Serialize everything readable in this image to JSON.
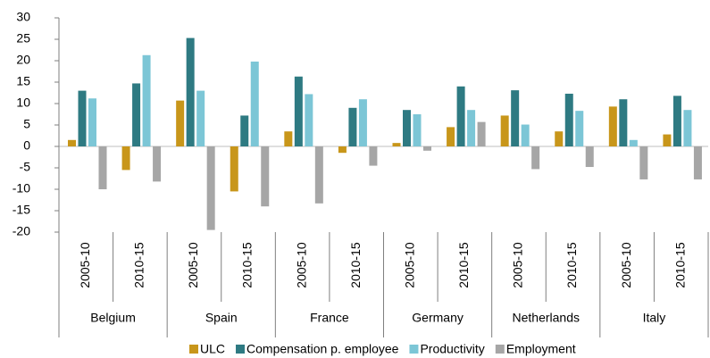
{
  "chart_data": {
    "type": "bar",
    "categories": [
      "2005-10",
      "2010-15",
      "2005-10",
      "2010-15",
      "2005-10",
      "2010-15",
      "2005-10",
      "2010-15",
      "2005-10",
      "2010-15",
      "2005-10",
      "2010-15"
    ],
    "groups": [
      "Belgium",
      "Spain",
      "France",
      "Germany",
      "Netherlands",
      "Italy"
    ],
    "series": [
      {
        "name": "ULC",
        "color": "#c8961a",
        "values": [
          1.5,
          -5.5,
          10.7,
          -10.5,
          3.5,
          -1.5,
          0.8,
          4.5,
          7.2,
          3.5,
          9.3,
          2.8
        ]
      },
      {
        "name": "Compensation p. employee",
        "color": "#2e7a82",
        "values": [
          13,
          14.7,
          25.3,
          7.2,
          16.3,
          9,
          8.5,
          14,
          13.1,
          12.3,
          11,
          11.8
        ]
      },
      {
        "name": "Productivity",
        "color": "#7cc6d6",
        "values": [
          11.2,
          21.3,
          13,
          19.8,
          12.2,
          11,
          7.5,
          8.5,
          5.1,
          8.3,
          1.5,
          8.5
        ]
      },
      {
        "name": "Employment",
        "color": "#a6a6a6",
        "values": [
          -10,
          -8.2,
          -19.5,
          -14,
          -13.3,
          -4.5,
          -1,
          5.7,
          -5.3,
          -4.8,
          -7.7,
          -7.7
        ]
      }
    ],
    "ylim": [
      -20,
      30
    ],
    "yticks": [
      -20,
      -15,
      -10,
      -5,
      0,
      5,
      10,
      15,
      20,
      25,
      30
    ]
  }
}
